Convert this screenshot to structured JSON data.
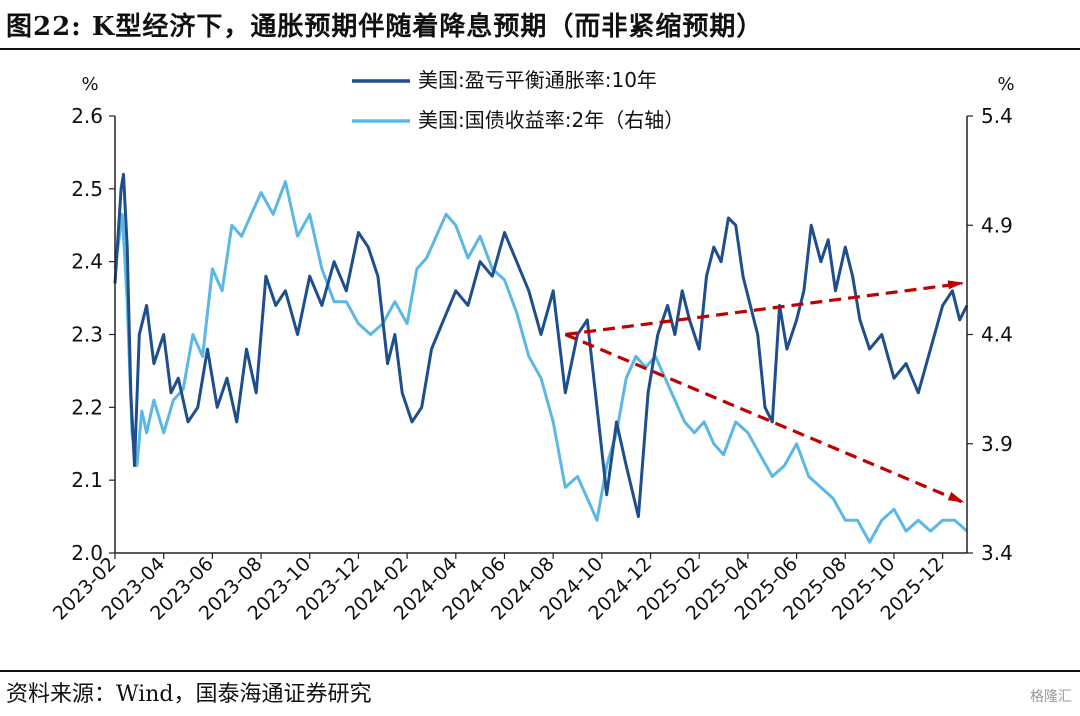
{
  "header": {
    "title": "图22:  K型经济下，通胀预期伴随着降息预期（而非紧缩预期）"
  },
  "footer": {
    "source": "资料来源：Wind，国泰海通证券研究",
    "watermark": "格隆汇"
  },
  "chart_data": {
    "type": "line",
    "left_unit": "%",
    "right_unit": "%",
    "ylim_left": [
      2.0,
      2.6
    ],
    "left_ticks": [
      "2.0",
      "2.1",
      "2.2",
      "2.3",
      "2.4",
      "2.5",
      "2.6"
    ],
    "ylim_right": [
      3.4,
      5.4
    ],
    "right_ticks": [
      "3.4",
      "3.9",
      "4.4",
      "4.9",
      "5.4"
    ],
    "x_tick_labels": [
      "2023-02",
      "2023-04",
      "2023-06",
      "2023-08",
      "2023-10",
      "2023-12",
      "2024-02",
      "2024-04",
      "2024-06",
      "2024-08",
      "2024-10",
      "2024-12",
      "2025-02",
      "2025-04",
      "2025-06",
      "2025-08",
      "2025-10",
      "2025-12"
    ],
    "x_range_months": [
      0,
      35
    ],
    "legend": [
      {
        "name": "美国:盈亏平衡通胀率:10年",
        "color": "#1F4E8C"
      },
      {
        "name": "美国:国债收益率:2年（右轴）",
        "color": "#5BB8E6"
      }
    ],
    "series": [
      {
        "name": "美国:盈亏平衡通胀率:10年",
        "axis": "left",
        "color": "#1F4E8C",
        "x": [
          0,
          0.25,
          0.35,
          0.5,
          0.65,
          0.8,
          1.0,
          1.3,
          1.6,
          2.0,
          2.3,
          2.6,
          3.0,
          3.4,
          3.8,
          4.2,
          4.6,
          5.0,
          5.4,
          5.8,
          6.2,
          6.6,
          7.0,
          7.5,
          8.0,
          8.5,
          9.0,
          9.5,
          10.0,
          10.4,
          10.8,
          11.2,
          11.5,
          11.8,
          12.2,
          12.6,
          13.0,
          13.5,
          14.0,
          14.5,
          15.0,
          15.5,
          16.0,
          16.5,
          17.0,
          17.5,
          18.0,
          18.5,
          19.0,
          19.4,
          19.8,
          20.2,
          20.6,
          21.0,
          21.5,
          21.9,
          22.3,
          22.7,
          23.0,
          23.3,
          23.6,
          24.0,
          24.3,
          24.6,
          24.9,
          25.2,
          25.5,
          25.8,
          26.1,
          26.4,
          26.7,
          27.0,
          27.3,
          27.6,
          28.0,
          28.3,
          28.6,
          29.0,
          29.3,
          29.6,
          30.0,
          30.3,
          30.6,
          31.0,
          31.5,
          32.0,
          32.5,
          33.0,
          33.5,
          34.0,
          34.4,
          34.7,
          35.0
        ],
        "values": [
          2.37,
          2.5,
          2.52,
          2.42,
          2.22,
          2.12,
          2.3,
          2.34,
          2.26,
          2.3,
          2.22,
          2.24,
          2.18,
          2.2,
          2.28,
          2.2,
          2.24,
          2.18,
          2.28,
          2.22,
          2.38,
          2.34,
          2.36,
          2.3,
          2.38,
          2.34,
          2.4,
          2.36,
          2.44,
          2.42,
          2.38,
          2.26,
          2.3,
          2.22,
          2.18,
          2.2,
          2.28,
          2.32,
          2.36,
          2.34,
          2.4,
          2.38,
          2.44,
          2.4,
          2.36,
          2.3,
          2.36,
          2.22,
          2.3,
          2.32,
          2.2,
          2.08,
          2.18,
          2.12,
          2.05,
          2.22,
          2.3,
          2.34,
          2.3,
          2.36,
          2.32,
          2.28,
          2.38,
          2.42,
          2.4,
          2.46,
          2.45,
          2.38,
          2.34,
          2.3,
          2.2,
          2.18,
          2.34,
          2.28,
          2.32,
          2.36,
          2.45,
          2.4,
          2.43,
          2.36,
          2.42,
          2.38,
          2.32,
          2.28,
          2.3,
          2.24,
          2.26,
          2.22,
          2.28,
          2.34,
          2.36,
          2.32,
          2.34
        ]
      },
      {
        "name": "美国:国债收益率:2年（右轴）",
        "axis": "right",
        "color": "#5BB8E6",
        "x": [
          0,
          0.3,
          0.5,
          0.7,
          0.9,
          1.1,
          1.3,
          1.6,
          2.0,
          2.4,
          2.8,
          3.2,
          3.6,
          4.0,
          4.4,
          4.8,
          5.2,
          5.6,
          6.0,
          6.5,
          7.0,
          7.5,
          8.0,
          8.5,
          9.0,
          9.5,
          10.0,
          10.5,
          11.0,
          11.5,
          12.0,
          12.4,
          12.8,
          13.2,
          13.6,
          14.0,
          14.5,
          15.0,
          15.5,
          16.0,
          16.5,
          17.0,
          17.5,
          18.0,
          18.5,
          19.0,
          19.4,
          19.8,
          20.2,
          20.6,
          21.0,
          21.4,
          21.8,
          22.2,
          22.6,
          23.0,
          23.4,
          23.8,
          24.2,
          24.6,
          25.0,
          25.5,
          26.0,
          26.5,
          27.0,
          27.5,
          28.0,
          28.5,
          29.0,
          29.5,
          30.0,
          30.5,
          31.0,
          31.5,
          32.0,
          32.5,
          33.0,
          33.5,
          34.0,
          34.5,
          35.0
        ],
        "values": [
          4.7,
          4.95,
          4.55,
          3.95,
          3.8,
          4.05,
          3.95,
          4.1,
          3.95,
          4.1,
          4.15,
          4.4,
          4.3,
          4.7,
          4.6,
          4.9,
          4.85,
          4.95,
          5.05,
          4.95,
          5.1,
          4.85,
          4.95,
          4.7,
          4.55,
          4.55,
          4.45,
          4.4,
          4.45,
          4.55,
          4.45,
          4.7,
          4.75,
          4.85,
          4.95,
          4.9,
          4.75,
          4.85,
          4.7,
          4.65,
          4.5,
          4.3,
          4.2,
          4.0,
          3.7,
          3.75,
          3.65,
          3.55,
          3.8,
          3.95,
          4.2,
          4.3,
          4.25,
          4.3,
          4.2,
          4.1,
          4.0,
          3.95,
          4.0,
          3.9,
          3.85,
          4.0,
          3.95,
          3.85,
          3.75,
          3.8,
          3.9,
          3.75,
          3.7,
          3.65,
          3.55,
          3.55,
          3.45,
          3.55,
          3.6,
          3.5,
          3.55,
          3.5,
          3.55,
          3.55,
          3.5
        ]
      }
    ],
    "annotations": [
      {
        "type": "arrow",
        "color": "#C00000",
        "style": "dashed",
        "from": {
          "x": 18.5,
          "y_left": 2.3
        },
        "to": {
          "x": 34.8,
          "y_left": 2.37
        }
      },
      {
        "type": "arrow",
        "color": "#C00000",
        "style": "dashed",
        "from": {
          "x": 18.5,
          "y_left": 2.3
        },
        "to": {
          "x": 34.8,
          "y_left": 2.07
        }
      }
    ]
  }
}
